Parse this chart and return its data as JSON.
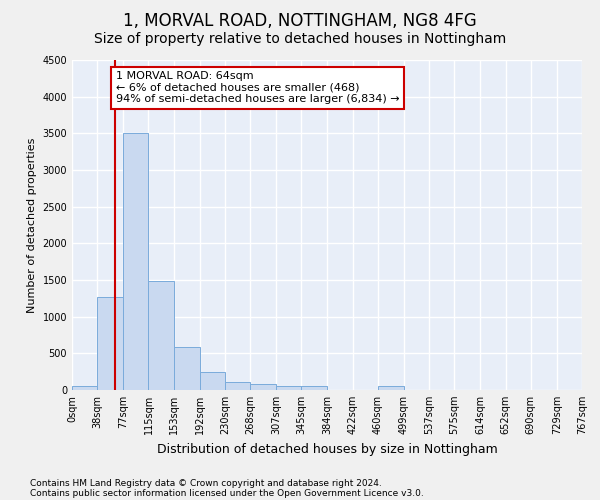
{
  "title1": "1, MORVAL ROAD, NOTTINGHAM, NG8 4FG",
  "title2": "Size of property relative to detached houses in Nottingham",
  "xlabel": "Distribution of detached houses by size in Nottingham",
  "ylabel": "Number of detached properties",
  "footer1": "Contains HM Land Registry data © Crown copyright and database right 2024.",
  "footer2": "Contains public sector information licensed under the Open Government Licence v3.0.",
  "bin_edges": [
    0,
    38,
    77,
    115,
    153,
    192,
    230,
    268,
    307,
    345,
    384,
    422,
    460,
    499,
    537,
    575,
    614,
    652,
    690,
    729,
    767
  ],
  "bar_heights": [
    50,
    1270,
    3500,
    1480,
    580,
    240,
    110,
    80,
    50,
    50,
    0,
    0,
    50,
    0,
    0,
    0,
    0,
    0,
    0,
    0
  ],
  "bar_color": "#c9d9f0",
  "bar_edge_color": "#7aabdb",
  "property_line_x": 64,
  "property_line_color": "#cc0000",
  "annotation_line1": "1 MORVAL ROAD: 64sqm",
  "annotation_line2": "← 6% of detached houses are smaller (468)",
  "annotation_line3": "94% of semi-detached houses are larger (6,834) →",
  "annotation_box_color": "#ffffff",
  "annotation_box_edge_color": "#cc0000",
  "ylim": [
    0,
    4500
  ],
  "yticks": [
    0,
    500,
    1000,
    1500,
    2000,
    2500,
    3000,
    3500,
    4000,
    4500
  ],
  "background_color": "#e8eef8",
  "grid_color": "#ffffff",
  "fig_background": "#f0f0f0",
  "title1_fontsize": 12,
  "title2_fontsize": 10,
  "ylabel_fontsize": 8,
  "xlabel_fontsize": 9,
  "tick_fontsize": 7,
  "footer_fontsize": 6.5,
  "annot_fontsize": 8
}
